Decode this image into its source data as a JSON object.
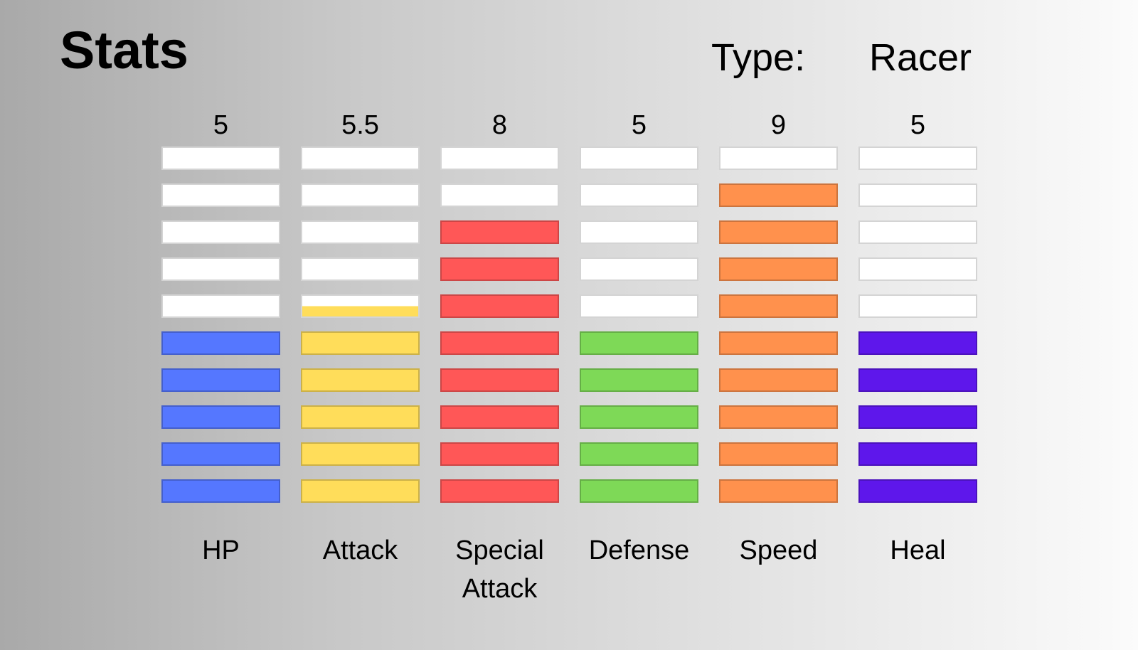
{
  "header": {
    "title": "Stats",
    "type_label": "Type:",
    "type_value": "Racer"
  },
  "chart_data": {
    "type": "bar",
    "max_segments": 10,
    "empty_color": "#ffffff",
    "categories": [
      {
        "label_lines": [
          "HP"
        ],
        "value_label": "5",
        "value": 5,
        "color": "#5577ff"
      },
      {
        "label_lines": [
          "Attack"
        ],
        "value_label": "5.5",
        "value": 5.5,
        "color": "#ffdd5a"
      },
      {
        "label_lines": [
          "Special",
          "Attack"
        ],
        "value_label": "8",
        "value": 8,
        "color": "#ff5757"
      },
      {
        "label_lines": [
          "Defense"
        ],
        "value_label": "5",
        "value": 5,
        "color": "#7ed957"
      },
      {
        "label_lines": [
          "Speed"
        ],
        "value_label": "9",
        "value": 9,
        "color": "#ff914d"
      },
      {
        "label_lines": [
          "Heal"
        ],
        "value_label": "5",
        "value": 5,
        "color": "#5e17eb"
      }
    ]
  }
}
